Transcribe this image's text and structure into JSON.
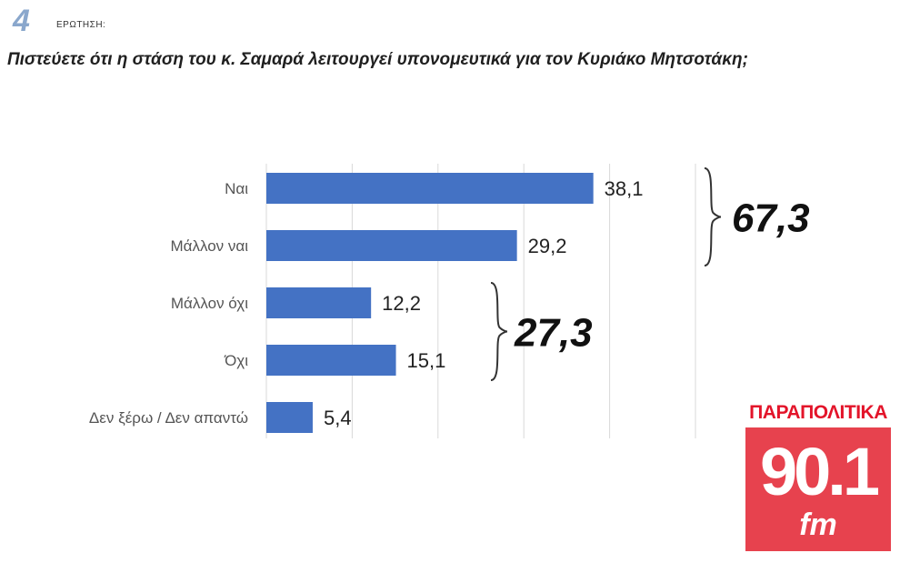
{
  "header": {
    "question_number": "4",
    "question_label": "ΕΡΩΤΗΣΗ:",
    "question_text": "Πιστεύετε ότι η στάση του κ. Σαμαρά λειτουργεί υπονομευτικά για τον Κυριάκο Μητσοτάκη;"
  },
  "chart_data": {
    "type": "bar",
    "orientation": "horizontal",
    "categories": [
      "Ναι",
      "Μάλλον ναι",
      "Μάλλον όχι",
      "Όχι",
      "Δεν ξέρω / Δεν απαντώ"
    ],
    "values": [
      38.1,
      29.2,
      12.2,
      15.1,
      5.4
    ],
    "value_labels": [
      "38,1",
      "29,2",
      "12,2",
      "15,1",
      "5,4"
    ],
    "xlim": [
      0,
      50
    ],
    "grid": true,
    "bar_color": "#4472c4",
    "groups": [
      {
        "label": "67,3",
        "categories": [
          "Ναι",
          "Μάλλον ναι"
        ]
      },
      {
        "label": "27,3",
        "categories": [
          "Μάλλον όχι",
          "Όχι"
        ]
      }
    ]
  },
  "logo": {
    "top_text": "ΠΑΡΑΠΟΛΙΤΙΚΑ",
    "number": "90.1",
    "suffix": "fm",
    "color": "#e3142a"
  }
}
